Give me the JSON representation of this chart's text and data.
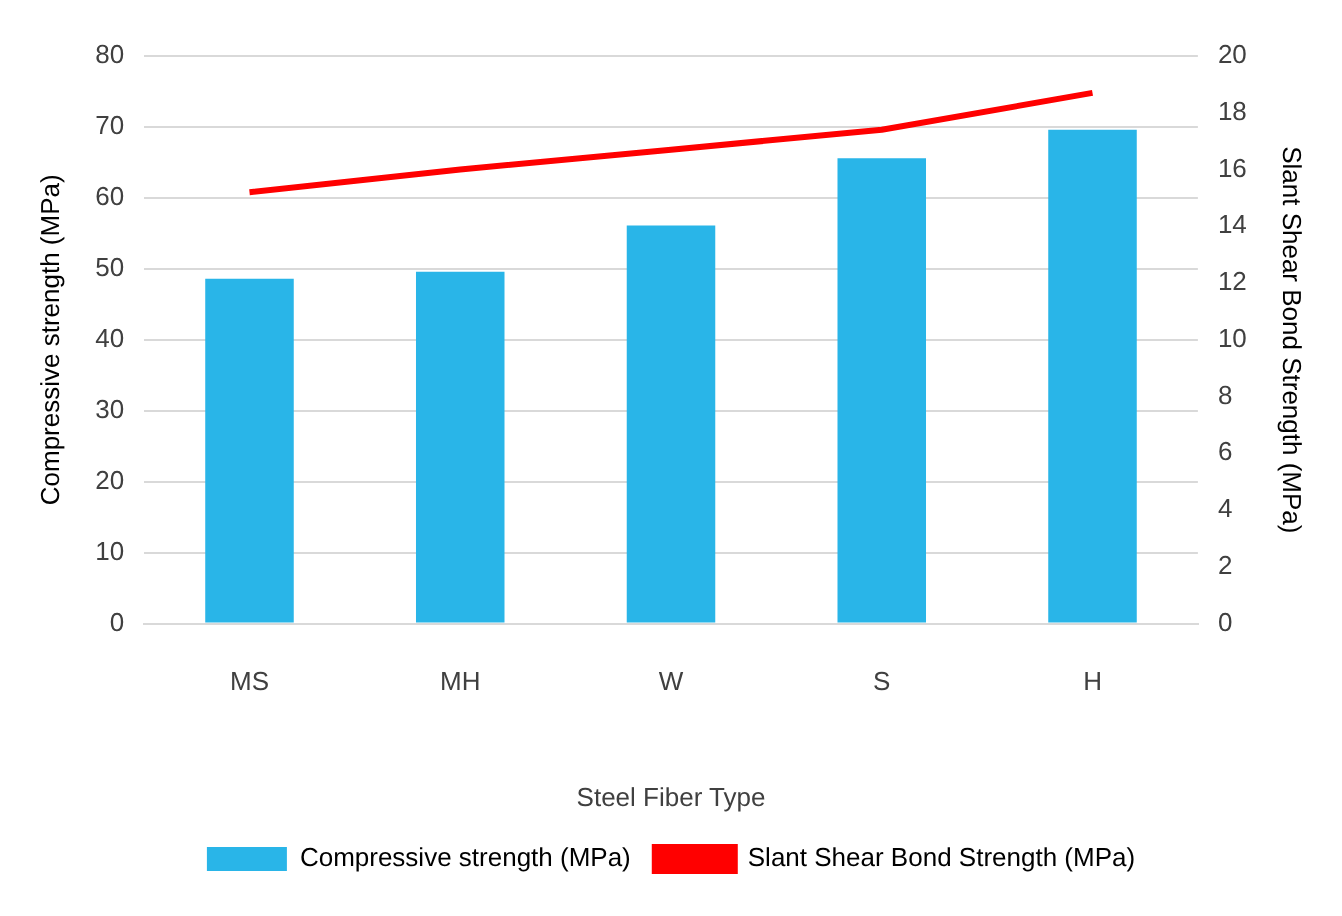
{
  "chart_data": {
    "type": "bar",
    "xlabel": "Steel Fiber Type",
    "ylabel": "Compressive strength (MPa)",
    "y2label": "Slant Shear Bond Strength (MPa)",
    "categories": [
      "MS",
      "MH",
      "W",
      "S",
      "H"
    ],
    "series": [
      {
        "name": "Compressive strength (MPa)",
        "color": "#29b5e8",
        "values": [
          48.6,
          49.6,
          56.1,
          65.6,
          69.6
        ]
      },
      {
        "name": "Slant Shear Bond Strength (MPa)",
        "type": "line",
        "axis": "y2",
        "color": "#ff0000",
        "values": [
          15.2,
          16.0,
          16.7,
          17.4,
          18.7
        ]
      }
    ],
    "ylim": [
      0,
      80
    ],
    "yticks": [
      0,
      10,
      20,
      30,
      40,
      50,
      60,
      70,
      80
    ],
    "y2lim": [
      0,
      20
    ],
    "y2ticks": [
      0,
      2,
      4,
      6,
      8,
      10,
      12,
      14,
      16,
      18,
      20
    ],
    "grid": "y",
    "legend": "bottom",
    "marker": "none"
  }
}
